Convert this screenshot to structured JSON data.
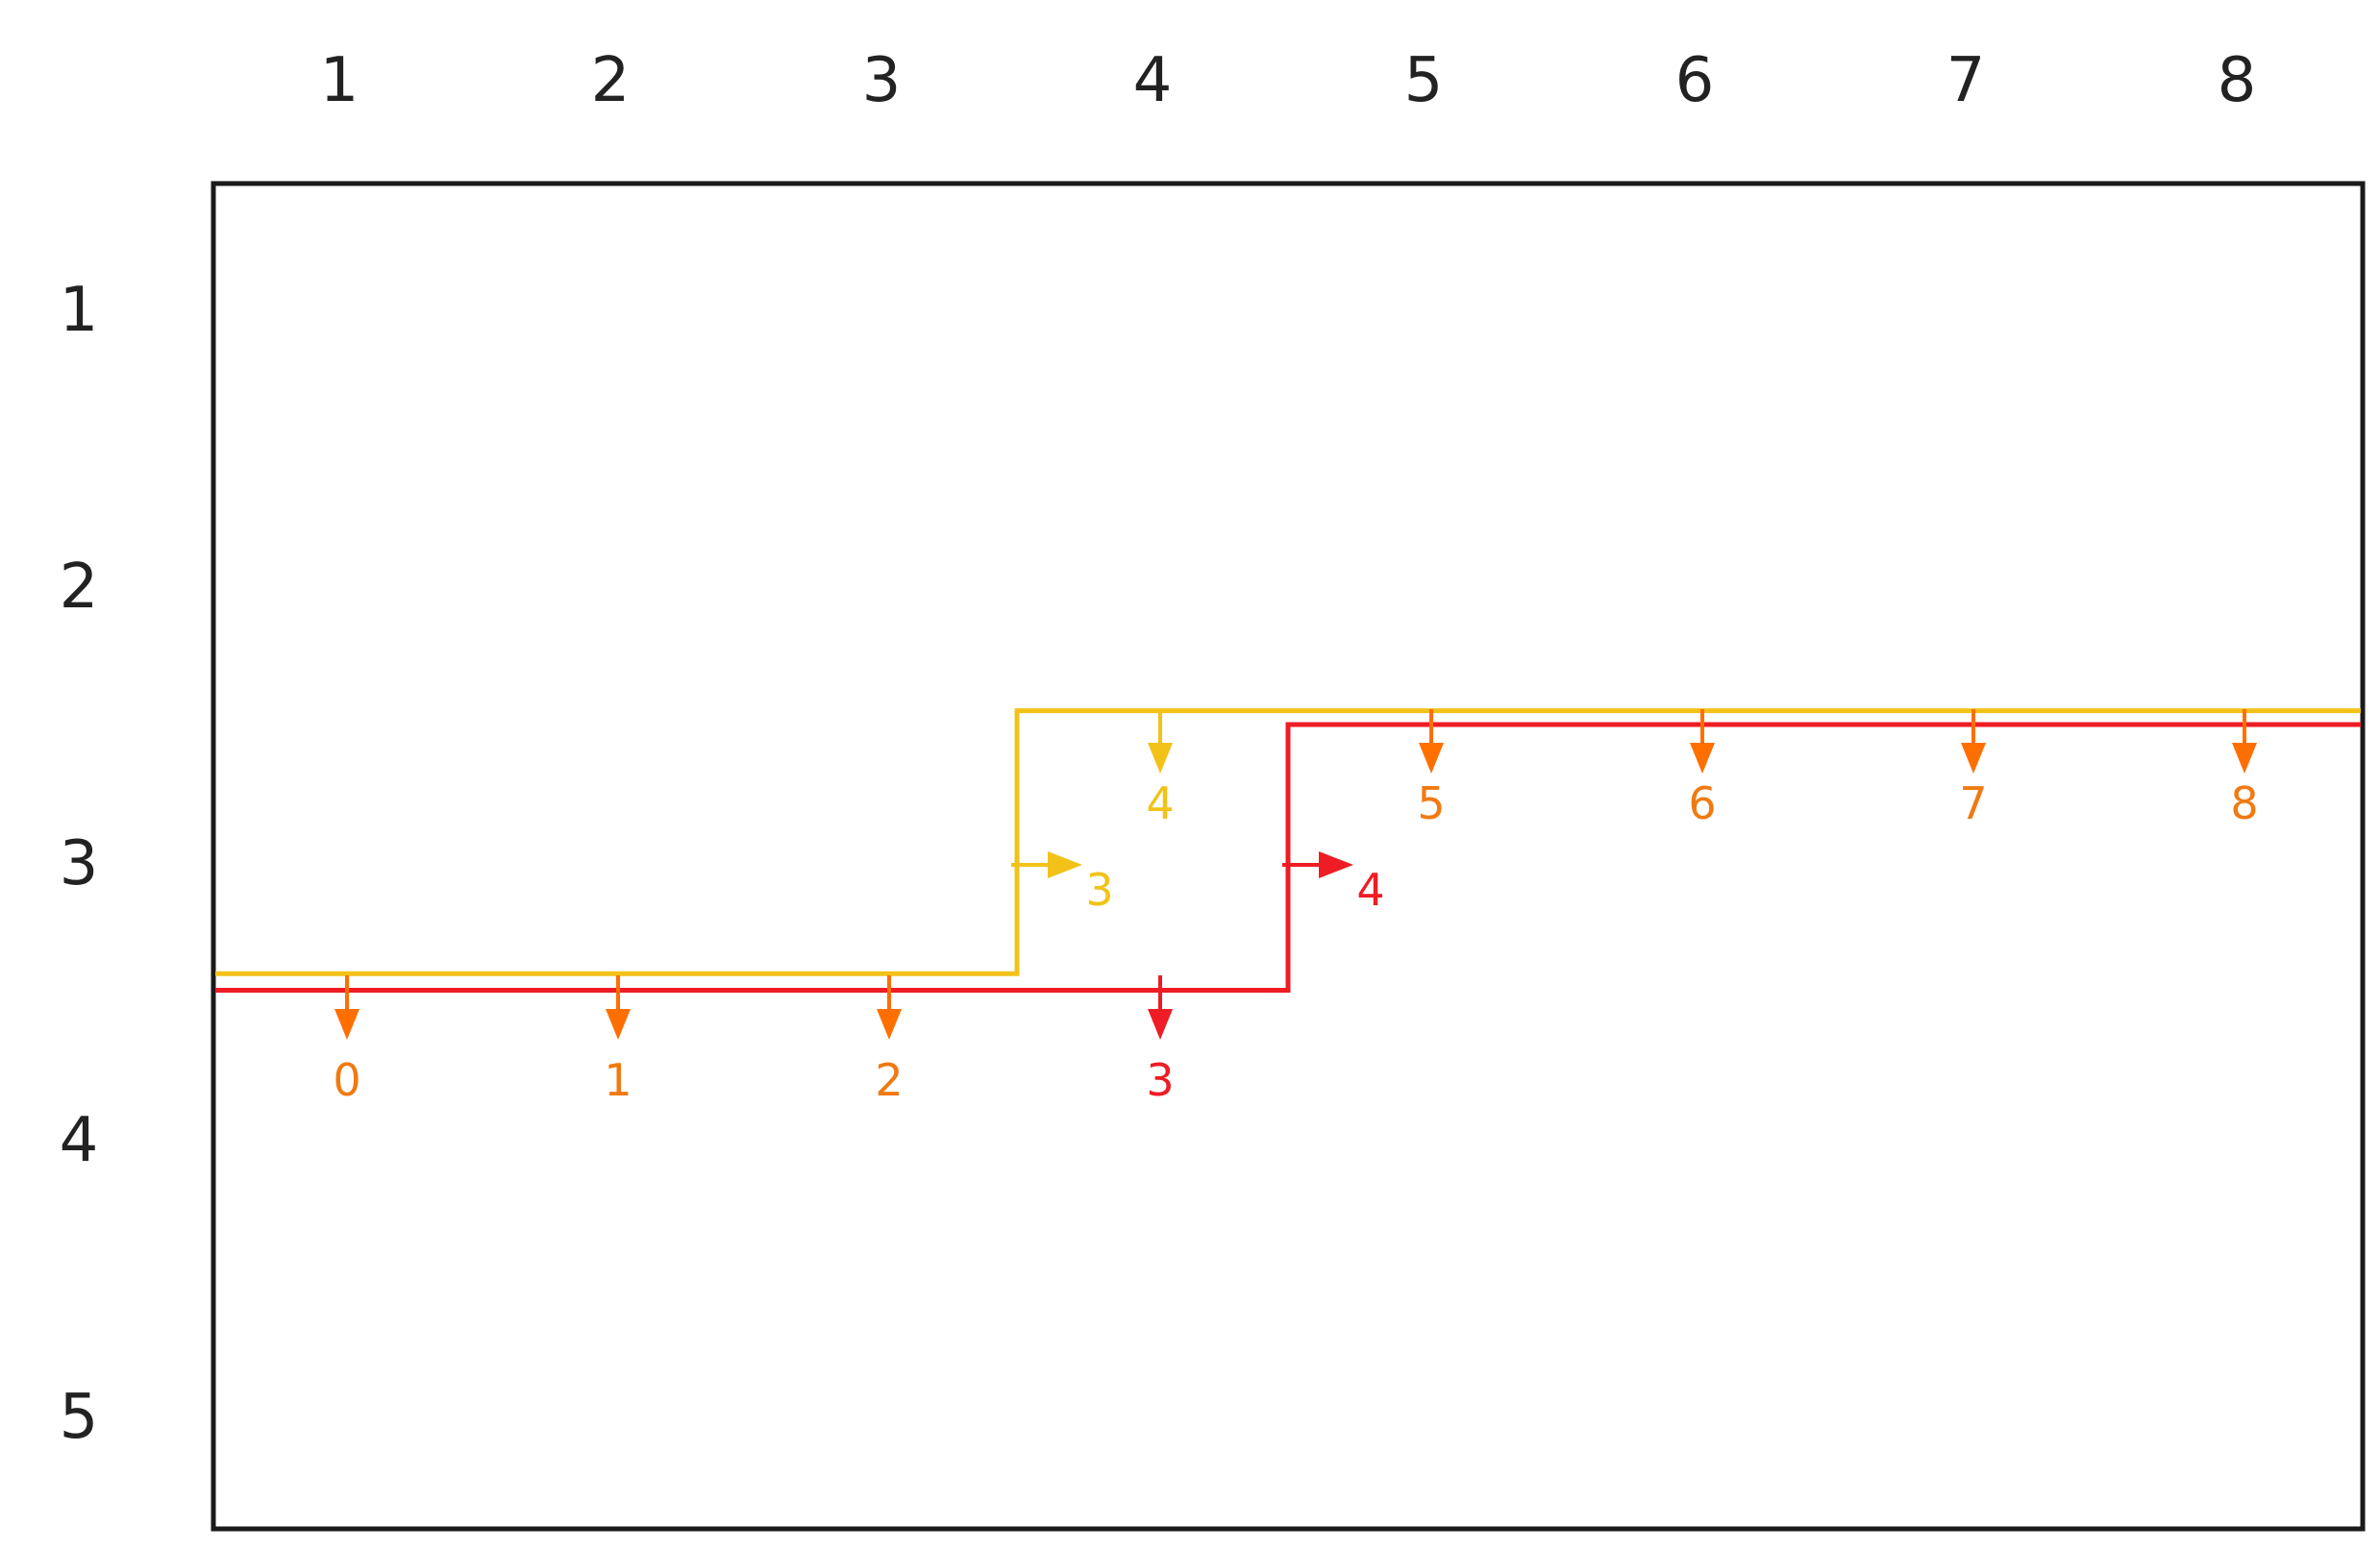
{
  "column_labels": [
    "1",
    "2",
    "3",
    "4",
    "5",
    "6",
    "7",
    "8"
  ],
  "row_labels": [
    "1",
    "2",
    "3",
    "4",
    "5"
  ],
  "colors": {
    "frame": "#1a1a1a",
    "yellow_path": "#f2c218",
    "red_path": "#ee1c24",
    "orange": "#ff6f00",
    "orange_text": "#f07a12"
  },
  "paths": [
    {
      "name": "yellow",
      "color": "#f2c218",
      "points": [
        [
          0.5,
          3.4
        ],
        [
          3.5,
          3.4
        ],
        [
          3.5,
          2.45
        ],
        [
          8.5,
          2.45
        ]
      ]
    },
    {
      "name": "red",
      "color": "#ee1c24",
      "points": [
        [
          0.5,
          3.46
        ],
        [
          4.5,
          3.46
        ],
        [
          4.5,
          2.5
        ],
        [
          8.5,
          2.5
        ]
      ]
    }
  ],
  "markers": [
    {
      "label": "0",
      "dir": "down",
      "col": 1,
      "row": "low",
      "color": "#ff6f00",
      "text_color": "#f07a12"
    },
    {
      "label": "1",
      "dir": "down",
      "col": 2,
      "row": "low",
      "color": "#ff6f00",
      "text_color": "#f07a12"
    },
    {
      "label": "2",
      "dir": "down",
      "col": 3,
      "row": "low",
      "color": "#ff6f00",
      "text_color": "#f07a12"
    },
    {
      "label": "3",
      "dir": "down",
      "col": 4,
      "row": "low",
      "color": "#ee1c24",
      "text_color": "#ee1c24"
    },
    {
      "label": "3",
      "dir": "right",
      "col": 3.5,
      "row": "mid",
      "color": "#f2c218",
      "text_color": "#f2c218"
    },
    {
      "label": "4",
      "dir": "right",
      "col": 4.5,
      "row": "mid",
      "color": "#ee1c24",
      "text_color": "#ee1c24"
    },
    {
      "label": "4",
      "dir": "down",
      "col": 4,
      "row": "high",
      "color": "#f2c218",
      "text_color": "#f2c218"
    },
    {
      "label": "5",
      "dir": "down",
      "col": 5,
      "row": "high",
      "color": "#ff6f00",
      "text_color": "#f07a12"
    },
    {
      "label": "6",
      "dir": "down",
      "col": 6,
      "row": "high",
      "color": "#ff6f00",
      "text_color": "#f07a12"
    },
    {
      "label": "7",
      "dir": "down",
      "col": 7,
      "row": "high",
      "color": "#ff6f00",
      "text_color": "#f07a12"
    },
    {
      "label": "8",
      "dir": "down",
      "col": 8,
      "row": "high",
      "color": "#ff6f00",
      "text_color": "#f07a12"
    }
  ]
}
